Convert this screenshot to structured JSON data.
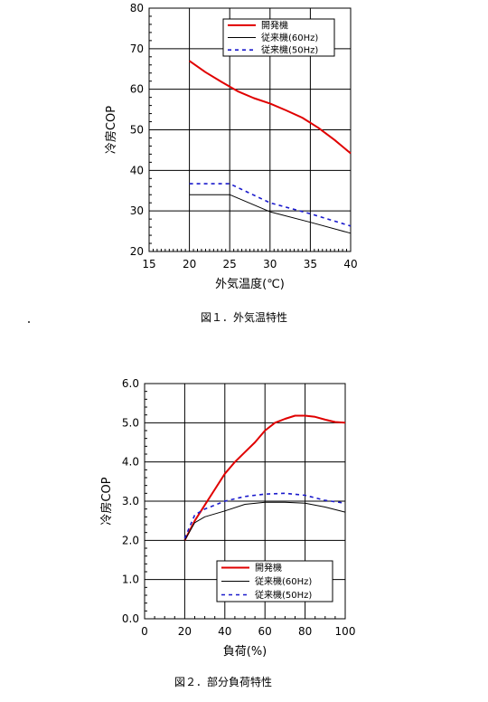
{
  "chart_data": [
    {
      "type": "line",
      "xlabel": "外気温度(℃)",
      "ylabel": "冷房COP",
      "caption": "図１．外気温特性",
      "xlim": [
        15,
        40
      ],
      "ylim": [
        2.0,
        8.0
      ],
      "x_ticks": [
        "15",
        "20",
        "25",
        "30",
        "35",
        "40"
      ],
      "y_ticks": [
        "20",
        "30",
        "40",
        "50",
        "60",
        "70",
        "80"
      ],
      "legend_position": "top-right",
      "series": [
        {
          "name": "開発機",
          "color": "#e00000",
          "style": "solid-thick",
          "x": [
            20,
            22,
            24,
            26,
            28,
            30,
            32,
            34,
            36,
            38,
            40
          ],
          "y": [
            6.7,
            6.42,
            6.18,
            5.95,
            5.78,
            5.65,
            5.48,
            5.3,
            5.05,
            4.75,
            4.42
          ]
        },
        {
          "name": "従来機(60Hz)",
          "color": "#000000",
          "style": "solid-thin",
          "x": [
            20,
            25,
            30,
            35,
            40
          ],
          "y": [
            3.4,
            3.4,
            2.98,
            2.72,
            2.45
          ]
        },
        {
          "name": "従来機(50Hz)",
          "color": "#1a1acc",
          "style": "dashed",
          "x": [
            20,
            25,
            30,
            35,
            40
          ],
          "y": [
            3.67,
            3.67,
            3.2,
            2.93,
            2.63
          ]
        }
      ]
    },
    {
      "type": "line",
      "xlabel": "負荷(%)",
      "ylabel": "冷房COP",
      "caption": "図２．部分負荷特性",
      "xlim": [
        0,
        100
      ],
      "ylim": [
        0.0,
        6.0
      ],
      "x_ticks": [
        "0",
        "20",
        "40",
        "60",
        "80",
        "100"
      ],
      "y_ticks": [
        "0.0",
        "1.0",
        "2.0",
        "3.0",
        "4.0",
        "5.0",
        "6.0"
      ],
      "legend_position": "bottom-right",
      "series": [
        {
          "name": "開発機",
          "color": "#e00000",
          "style": "solid-thick",
          "x": [
            20,
            25,
            30,
            35,
            40,
            45,
            50,
            55,
            60,
            65,
            70,
            75,
            80,
            85,
            90,
            95,
            100
          ],
          "y": [
            2.0,
            2.5,
            2.9,
            3.3,
            3.7,
            4.0,
            4.25,
            4.5,
            4.8,
            5.0,
            5.1,
            5.18,
            5.18,
            5.15,
            5.08,
            5.02,
            5.0
          ]
        },
        {
          "name": "従来機(60Hz)",
          "color": "#000000",
          "style": "solid-thin",
          "x": [
            20,
            25,
            30,
            40,
            50,
            60,
            70,
            80,
            90,
            100
          ],
          "y": [
            2.0,
            2.45,
            2.6,
            2.75,
            2.92,
            2.97,
            2.97,
            2.95,
            2.85,
            2.72
          ]
        },
        {
          "name": "従来機(50Hz)",
          "color": "#1a1acc",
          "style": "dashed",
          "x": [
            20,
            25,
            30,
            40,
            50,
            60,
            70,
            80,
            90,
            100
          ],
          "y": [
            2.05,
            2.65,
            2.8,
            3.0,
            3.12,
            3.18,
            3.2,
            3.15,
            3.02,
            2.95
          ]
        }
      ]
    }
  ]
}
